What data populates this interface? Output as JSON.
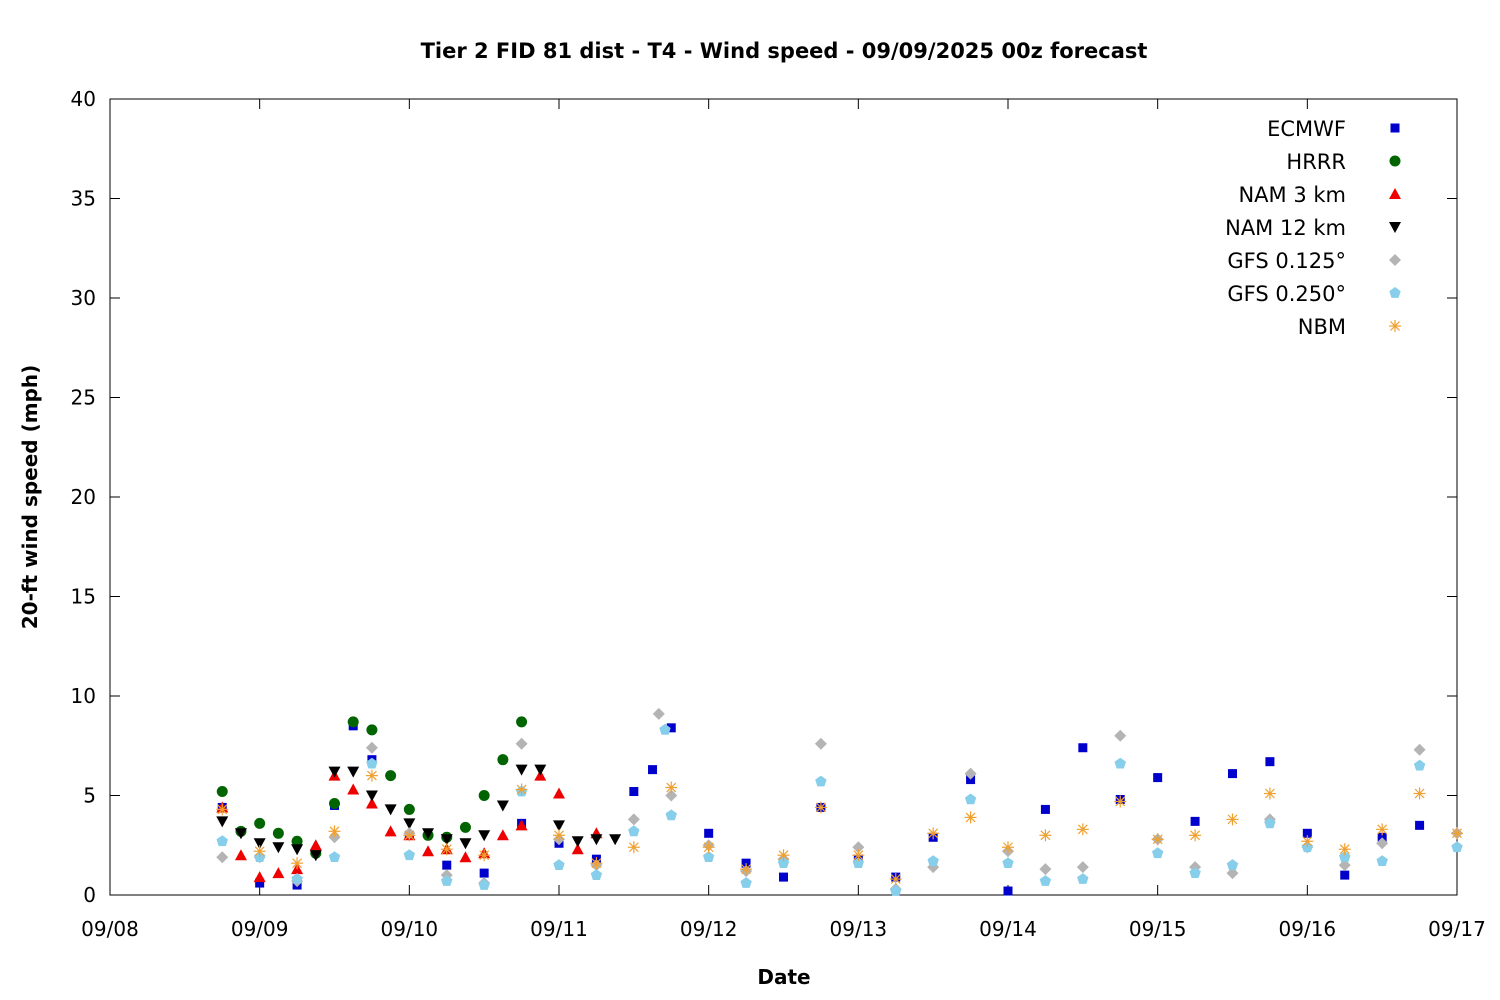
{
  "chart_data": {
    "type": "scatter",
    "title": "Tier 2 FID 81 dist - T4 - Wind speed - 09/09/2025 00z forecast",
    "xlabel": "Date",
    "ylabel": "20-ft wind speed (mph)",
    "xlim": [
      "2025-09-08 00:00",
      "2025-09-17 00:00"
    ],
    "ylim": [
      0,
      40
    ],
    "x_ticks": [
      "09/08",
      "09/09",
      "09/10",
      "09/11",
      "09/12",
      "09/13",
      "09/14",
      "09/15",
      "09/16",
      "09/17"
    ],
    "y_ticks": [
      0,
      5,
      10,
      15,
      20,
      25,
      30,
      35,
      40
    ],
    "grid": false,
    "legend_position": "top-right",
    "series": [
      {
        "name": "ECMWF",
        "color": "#0000cc",
        "marker": "square",
        "x": [
          "2025-09-08 18:00",
          "2025-09-09 00:00",
          "2025-09-09 06:00",
          "2025-09-09 12:00",
          "2025-09-09 15:00",
          "2025-09-09 18:00",
          "2025-09-10 00:00",
          "2025-09-10 06:00",
          "2025-09-10 12:00",
          "2025-09-10 18:00",
          "2025-09-11 00:00",
          "2025-09-11 06:00",
          "2025-09-11 12:00",
          "2025-09-11 15:00",
          "2025-09-11 18:00",
          "2025-09-12 00:00",
          "2025-09-12 06:00",
          "2025-09-12 12:00",
          "2025-09-12 18:00",
          "2025-09-13 00:00",
          "2025-09-13 06:00",
          "2025-09-13 12:00",
          "2025-09-13 18:00",
          "2025-09-14 00:00",
          "2025-09-14 06:00",
          "2025-09-14 12:00",
          "2025-09-14 18:00",
          "2025-09-15 00:00",
          "2025-09-15 06:00",
          "2025-09-15 12:00",
          "2025-09-15 18:00",
          "2025-09-16 00:00",
          "2025-09-16 06:00",
          "2025-09-16 12:00",
          "2025-09-16 18:00"
        ],
        "y": [
          4.4,
          0.6,
          0.5,
          4.5,
          8.5,
          6.8,
          3.0,
          1.5,
          1.1,
          3.6,
          2.6,
          1.8,
          5.2,
          6.3,
          8.4,
          3.1,
          1.6,
          0.9,
          4.4,
          1.8,
          0.9,
          2.9,
          5.8,
          0.2,
          4.3,
          7.4,
          4.8,
          5.9,
          3.7,
          6.1,
          6.7,
          3.1,
          1.0,
          2.9,
          3.5
        ]
      },
      {
        "name": "HRRR",
        "color": "#006400",
        "marker": "circle",
        "x": [
          "2025-09-08 18:00",
          "2025-09-08 21:00",
          "2025-09-09 00:00",
          "2025-09-09 03:00",
          "2025-09-09 06:00",
          "2025-09-09 09:00",
          "2025-09-09 12:00",
          "2025-09-09 15:00",
          "2025-09-09 18:00",
          "2025-09-09 21:00",
          "2025-09-10 00:00",
          "2025-09-10 03:00",
          "2025-09-10 06:00",
          "2025-09-10 09:00",
          "2025-09-10 12:00",
          "2025-09-10 15:00",
          "2025-09-10 18:00"
        ],
        "y": [
          5.2,
          3.2,
          3.6,
          3.1,
          2.7,
          2.1,
          4.6,
          8.7,
          8.3,
          6.0,
          4.3,
          3.0,
          2.9,
          3.4,
          5.0,
          6.8,
          8.7
        ]
      },
      {
        "name": "NAM 3 km",
        "color": "#ee0000",
        "marker": "triangle-up",
        "x": [
          "2025-09-08 18:00",
          "2025-09-08 21:00",
          "2025-09-09 00:00",
          "2025-09-09 03:00",
          "2025-09-09 06:00",
          "2025-09-09 09:00",
          "2025-09-09 12:00",
          "2025-09-09 15:00",
          "2025-09-09 18:00",
          "2025-09-09 21:00",
          "2025-09-10 00:00",
          "2025-09-10 03:00",
          "2025-09-10 06:00",
          "2025-09-10 09:00",
          "2025-09-10 12:00",
          "2025-09-10 15:00",
          "2025-09-10 18:00",
          "2025-09-10 21:00",
          "2025-09-11 00:00",
          "2025-09-11 03:00",
          "2025-09-11 06:00"
        ],
        "y": [
          4.4,
          2.0,
          0.9,
          1.1,
          1.3,
          2.5,
          6.0,
          5.3,
          4.6,
          3.2,
          3.0,
          2.2,
          2.3,
          1.9,
          2.1,
          3.0,
          3.5,
          6.0,
          5.1,
          2.3,
          3.1
        ]
      },
      {
        "name": "NAM 12 km",
        "color": "#000000",
        "marker": "triangle-down",
        "x": [
          "2025-09-08 18:00",
          "2025-09-08 21:00",
          "2025-09-09 00:00",
          "2025-09-09 03:00",
          "2025-09-09 06:00",
          "2025-09-09 09:00",
          "2025-09-09 12:00",
          "2025-09-09 15:00",
          "2025-09-09 18:00",
          "2025-09-09 21:00",
          "2025-09-10 00:00",
          "2025-09-10 03:00",
          "2025-09-10 06:00",
          "2025-09-10 09:00",
          "2025-09-10 12:00",
          "2025-09-10 15:00",
          "2025-09-10 18:00",
          "2025-09-10 21:00",
          "2025-09-11 00:00",
          "2025-09-11 03:00",
          "2025-09-11 06:00",
          "2025-09-11 09:00"
        ],
        "y": [
          3.7,
          3.1,
          2.6,
          2.4,
          2.3,
          2.0,
          6.2,
          6.2,
          5.0,
          4.3,
          3.6,
          3.1,
          2.8,
          2.6,
          3.0,
          4.5,
          6.3,
          6.3,
          3.5,
          2.7,
          2.8,
          2.8
        ]
      },
      {
        "name": "GFS 0.125°",
        "color": "#b4b4b4",
        "marker": "diamond",
        "x": [
          "2025-09-08 18:00",
          "2025-09-09 00:00",
          "2025-09-09 06:00",
          "2025-09-09 12:00",
          "2025-09-09 18:00",
          "2025-09-10 00:00",
          "2025-09-10 06:00",
          "2025-09-10 12:00",
          "2025-09-10 18:00",
          "2025-09-11 00:00",
          "2025-09-11 06:00",
          "2025-09-11 12:00",
          "2025-09-11 16:00",
          "2025-09-11 18:00",
          "2025-09-12 00:00",
          "2025-09-12 06:00",
          "2025-09-12 12:00",
          "2025-09-12 18:00",
          "2025-09-13 00:00",
          "2025-09-13 06:00",
          "2025-09-13 12:00",
          "2025-09-13 18:00",
          "2025-09-14 00:00",
          "2025-09-14 06:00",
          "2025-09-14 12:00",
          "2025-09-14 18:00",
          "2025-09-15 00:00",
          "2025-09-15 06:00",
          "2025-09-15 12:00",
          "2025-09-15 18:00",
          "2025-09-16 00:00",
          "2025-09-16 06:00",
          "2025-09-16 12:00",
          "2025-09-16 18:00",
          "2025-09-17 00:00"
        ],
        "y": [
          1.9,
          1.9,
          0.7,
          2.9,
          7.4,
          3.1,
          1.0,
          0.6,
          7.6,
          2.8,
          1.5,
          3.8,
          9.1,
          5.0,
          2.5,
          1.2,
          1.8,
          7.6,
          2.4,
          0.3,
          1.4,
          6.1,
          2.2,
          1.3,
          1.4,
          8.0,
          2.8,
          1.4,
          1.1,
          3.8,
          2.4,
          1.5,
          2.6,
          7.3,
          3.1
        ]
      },
      {
        "name": "GFS 0.250°",
        "color": "#87ceeb",
        "marker": "pentagon",
        "x": [
          "2025-09-08 18:00",
          "2025-09-09 00:00",
          "2025-09-09 06:00",
          "2025-09-09 12:00",
          "2025-09-09 18:00",
          "2025-09-10 00:00",
          "2025-09-10 06:00",
          "2025-09-10 12:00",
          "2025-09-10 18:00",
          "2025-09-11 00:00",
          "2025-09-11 06:00",
          "2025-09-11 12:00",
          "2025-09-11 17:00",
          "2025-09-11 18:00",
          "2025-09-12 00:00",
          "2025-09-12 06:00",
          "2025-09-12 12:00",
          "2025-09-12 18:00",
          "2025-09-13 00:00",
          "2025-09-13 06:00",
          "2025-09-13 12:00",
          "2025-09-13 18:00",
          "2025-09-14 00:00",
          "2025-09-14 06:00",
          "2025-09-14 12:00",
          "2025-09-14 18:00",
          "2025-09-15 00:00",
          "2025-09-15 06:00",
          "2025-09-15 12:00",
          "2025-09-15 18:00",
          "2025-09-16 00:00",
          "2025-09-16 06:00",
          "2025-09-16 12:00",
          "2025-09-16 18:00",
          "2025-09-17 00:00"
        ],
        "y": [
          2.7,
          1.9,
          0.8,
          1.9,
          6.6,
          2.0,
          0.7,
          0.5,
          5.2,
          1.5,
          1.0,
          3.2,
          8.3,
          4.0,
          1.9,
          0.6,
          1.6,
          5.7,
          1.6,
          0.2,
          1.7,
          4.8,
          1.6,
          0.7,
          0.8,
          6.6,
          2.1,
          1.1,
          1.5,
          3.6,
          2.4,
          1.9,
          1.7,
          6.5,
          2.4
        ]
      },
      {
        "name": "NBM",
        "color": "#f0a030",
        "marker": "asterisk",
        "x": [
          "2025-09-08 18:00",
          "2025-09-09 00:00",
          "2025-09-09 06:00",
          "2025-09-09 12:00",
          "2025-09-09 18:00",
          "2025-09-10 00:00",
          "2025-09-10 06:00",
          "2025-09-10 12:00",
          "2025-09-10 18:00",
          "2025-09-11 00:00",
          "2025-09-11 06:00",
          "2025-09-11 12:00",
          "2025-09-11 18:00",
          "2025-09-12 00:00",
          "2025-09-12 06:00",
          "2025-09-12 12:00",
          "2025-09-12 18:00",
          "2025-09-13 00:00",
          "2025-09-13 06:00",
          "2025-09-13 12:00",
          "2025-09-13 18:00",
          "2025-09-14 00:00",
          "2025-09-14 06:00",
          "2025-09-14 12:00",
          "2025-09-14 18:00",
          "2025-09-15 00:00",
          "2025-09-15 06:00",
          "2025-09-15 12:00",
          "2025-09-15 18:00",
          "2025-09-16 00:00",
          "2025-09-16 06:00",
          "2025-09-16 12:00",
          "2025-09-16 18:00",
          "2025-09-17 00:00"
        ],
        "y": [
          4.3,
          2.2,
          1.6,
          3.2,
          6.0,
          3.0,
          2.3,
          2.0,
          5.3,
          3.0,
          1.6,
          2.4,
          5.4,
          2.4,
          1.3,
          2.0,
          4.4,
          2.0,
          0.8,
          3.1,
          3.9,
          2.4,
          3.0,
          3.3,
          4.7,
          2.8,
          3.0,
          3.8,
          5.1,
          2.7,
          2.3,
          3.3,
          5.1,
          3.1
        ]
      }
    ]
  }
}
